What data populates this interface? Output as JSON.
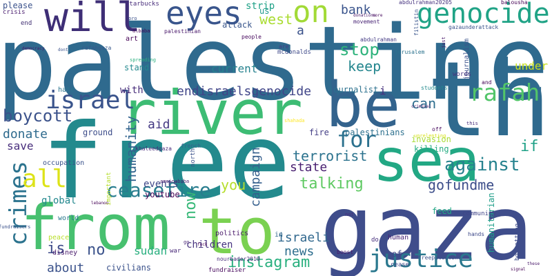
{
  "words": [
    {
      "text": "palestine",
      "color": "#2f6a8e"
    },
    {
      "text": "free",
      "color": "#238a8d"
    },
    {
      "text": "gaza",
      "color": "#3f4d8b"
    },
    {
      "text": "river",
      "color": "#3dbc74"
    },
    {
      "text": "the",
      "color": "#2f6a8e"
    },
    {
      "text": "from",
      "color": "#47c06f"
    },
    {
      "text": "to",
      "color": "#7ad151"
    },
    {
      "text": "sea",
      "color": "#22a884"
    },
    {
      "text": "be",
      "color": "#33638d"
    },
    {
      "text": "will",
      "color": "#3e2e76"
    },
    {
      "text": "eyes",
      "color": "#39558c"
    },
    {
      "text": "on",
      "color": "#a2da37"
    },
    {
      "text": "genocide",
      "color": "#20a386"
    },
    {
      "text": "justice",
      "color": "#2a788e"
    },
    {
      "text": "israel",
      "color": "#3a548c"
    },
    {
      "text": "rafah",
      "color": "#52c569"
    },
    {
      "text": "crimes",
      "color": "#2c738e"
    },
    {
      "text": "ceasefire",
      "color": "#287d8e"
    },
    {
      "text": "all",
      "color": "#dde318"
    },
    {
      "text": "for",
      "color": "#2c718e"
    },
    {
      "text": "against",
      "color": "#26828e"
    },
    {
      "text": "boycott",
      "color": "#3b528b"
    },
    {
      "text": "endisraelsgenocide",
      "color": "#404588"
    },
    {
      "text": "stop",
      "color": "#2eb37c"
    },
    {
      "text": "keep",
      "color": "#24868e"
    },
    {
      "text": "west",
      "color": "#aadc32"
    },
    {
      "text": "bank",
      "color": "#3a548c"
    },
    {
      "text": "instagram",
      "color": "#2ab07f"
    },
    {
      "text": "talking",
      "color": "#5ec962"
    },
    {
      "text": "gofundme",
      "color": "#3d4e8a"
    },
    {
      "text": "terrorist",
      "color": "#2c738e"
    },
    {
      "text": "humanity",
      "color": "#32648e"
    },
    {
      "text": "now",
      "color": "#37b878"
    },
    {
      "text": "campaign",
      "color": "#355f8d"
    },
    {
      "text": "state",
      "color": "#481f70"
    },
    {
      "text": "if",
      "color": "#1fa187"
    },
    {
      "text": "can",
      "color": "#2e6e8e"
    },
    {
      "text": "no",
      "color": "#3b528b"
    },
    {
      "text": "is",
      "color": "#3e4a89"
    },
    {
      "text": "about",
      "color": "#3b528b"
    },
    {
      "text": "israeli",
      "color": "#31688e"
    },
    {
      "text": "you",
      "color": "#b5de2b"
    },
    {
      "text": "aid",
      "color": "#443983"
    },
    {
      "text": "news",
      "color": "#2e6e8e"
    },
    {
      "text": "donate",
      "color": "#2f6b8e"
    },
    {
      "text": "save",
      "color": "#472d7b"
    },
    {
      "text": "under",
      "color": "#c8e020"
    },
    {
      "text": "with",
      "color": "#472c7a"
    },
    {
      "text": "current",
      "color": "#26828e"
    },
    {
      "text": "strip",
      "color": "#1fa187"
    },
    {
      "text": "global",
      "color": "#23888e"
    },
    {
      "text": "sudan",
      "color": "#29af7f"
    },
    {
      "text": "children",
      "color": "#46337f"
    },
    {
      "text": "events",
      "color": "#3f4788"
    },
    {
      "text": "a",
      "color": "#3b528b"
    },
    {
      "text": "humanitarian",
      "color": "#1f9e89"
    },
    {
      "text": "journalist",
      "color": "#2c718e"
    },
    {
      "text": "palestinians",
      "color": "#2d708e"
    },
    {
      "text": "civilians",
      "color": "#3b528b"
    },
    {
      "text": "invasion",
      "color": "#a8db34"
    },
    {
      "text": "killing",
      "color": "#25ac82"
    },
    {
      "text": "attack",
      "color": "#39568c"
    },
    {
      "text": "youtube",
      "color": "#440154"
    },
    {
      "text": "fire",
      "color": "#433e85"
    },
    {
      "text": "i",
      "color": "#46317e"
    },
    {
      "text": "art",
      "color": "#440154"
    },
    {
      "text": "stand",
      "color": "#23898e"
    },
    {
      "text": "hate",
      "color": "#2b748e"
    },
    {
      "text": "us",
      "color": "#1f988b"
    },
    {
      "text": "ground",
      "color": "#3d4d8a"
    },
    {
      "text": "occupation",
      "color": "#3b528b"
    },
    {
      "text": "world",
      "color": "#2a788e"
    },
    {
      "text": "politics",
      "color": "#481769"
    },
    {
      "text": "peace",
      "color": "#b8de29"
    },
    {
      "text": "disney",
      "color": "#481a6c"
    },
    {
      "text": "of",
      "color": "#3f4788"
    },
    {
      "text": "journalism",
      "color": "#3b528b"
    },
    {
      "text": "words",
      "color": "#45327e"
    },
    {
      "text": "human",
      "color": "#482475"
    },
    {
      "text": "boycotting",
      "color": "#3e4c8a"
    },
    {
      "text": "feed",
      "color": "#22a785"
    },
    {
      "text": "please",
      "color": "#3b528b"
    },
    {
      "text": "crisis",
      "color": "#481b6d"
    },
    {
      "text": "starbucks",
      "color": "#472c7a"
    },
    {
      "text": "mcdonalds",
      "color": "#3e4989"
    },
    {
      "text": "community",
      "color": "#404588"
    },
    {
      "text": "in",
      "color": "#31688e"
    },
    {
      "text": "do",
      "color": "#472f7d"
    },
    {
      "text": "cease",
      "color": "#3f4788"
    },
    {
      "text": "war",
      "color": "#482878"
    },
    {
      "text": "fundraiser",
      "color": "#46085c"
    },
    {
      "text": "north",
      "color": "#3b528b"
    },
    {
      "text": "important",
      "color": "#b5de2b"
    },
    {
      "text": "french",
      "color": "#34618d"
    },
    {
      "text": "khaleedgaza",
      "color": "#472a7a"
    },
    {
      "text": "abdulrahman20205",
      "color": "#46337f"
    },
    {
      "text": "abdulrahman",
      "color": "#443b84"
    },
    {
      "text": "filistin",
      "color": "#39558c"
    },
    {
      "text": "jerusalem",
      "color": "#2c738e"
    },
    {
      "text": "gazaunderattack",
      "color": "#3b528b"
    },
    {
      "text": "balousha",
      "color": "#440154"
    },
    {
      "text": "palestinian",
      "color": "#481769"
    },
    {
      "text": "end",
      "color": "#3e2c70"
    },
    {
      "text": "are",
      "color": "#433e85"
    },
    {
      "text": "people",
      "color": "#46085c"
    },
    {
      "text": "movement",
      "color": "#482475"
    },
    {
      "text": "freepalestine",
      "color": "#3b528b"
    },
    {
      "text": "nourbader2019",
      "color": "#472d7b"
    },
    {
      "text": "students",
      "color": "#238a8d"
    },
    {
      "text": "spreading",
      "color": "#29af7f"
    },
    {
      "text": "boost",
      "color": "#481769"
    },
    {
      "text": "rafahgaza",
      "color": "#38598c"
    },
    {
      "text": "ameinababa",
      "color": "#481d6f"
    },
    {
      "text": "hands",
      "color": "#3e4989"
    },
    {
      "text": "fundraisers",
      "color": "#3b528b"
    },
    {
      "text": "albaba",
      "color": "#440154"
    },
    {
      "text": "pro",
      "color": "#3b528b"
    },
    {
      "text": "just",
      "color": "#481769"
    },
    {
      "text": "off",
      "color": "#46085c"
    },
    {
      "text": "this",
      "color": "#472c7a"
    },
    {
      "text": "and",
      "color": "#440154"
    },
    {
      "text": "unrelenting",
      "color": "#d8e219"
    },
    {
      "text": "criminal",
      "color": "#481769"
    },
    {
      "text": "shahada",
      "color": "#fde725"
    },
    {
      "text": "these",
      "color": "#481769"
    },
    {
      "text": "signal",
      "color": "#440154"
    },
    {
      "text": "not",
      "color": "#472d7b"
    },
    {
      "text": "go",
      "color": "#482576"
    },
    {
      "text": "fuck",
      "color": "#440154"
    },
    {
      "text": "lebanon",
      "color": "#440154"
    },
    {
      "text": "more",
      "color": "#46085c"
    },
    {
      "text": "donations",
      "color": "#481769"
    },
    {
      "text": "dont",
      "color": "#3b528b"
    },
    {
      "text": "democracy",
      "color": "#481769"
    }
  ]
}
